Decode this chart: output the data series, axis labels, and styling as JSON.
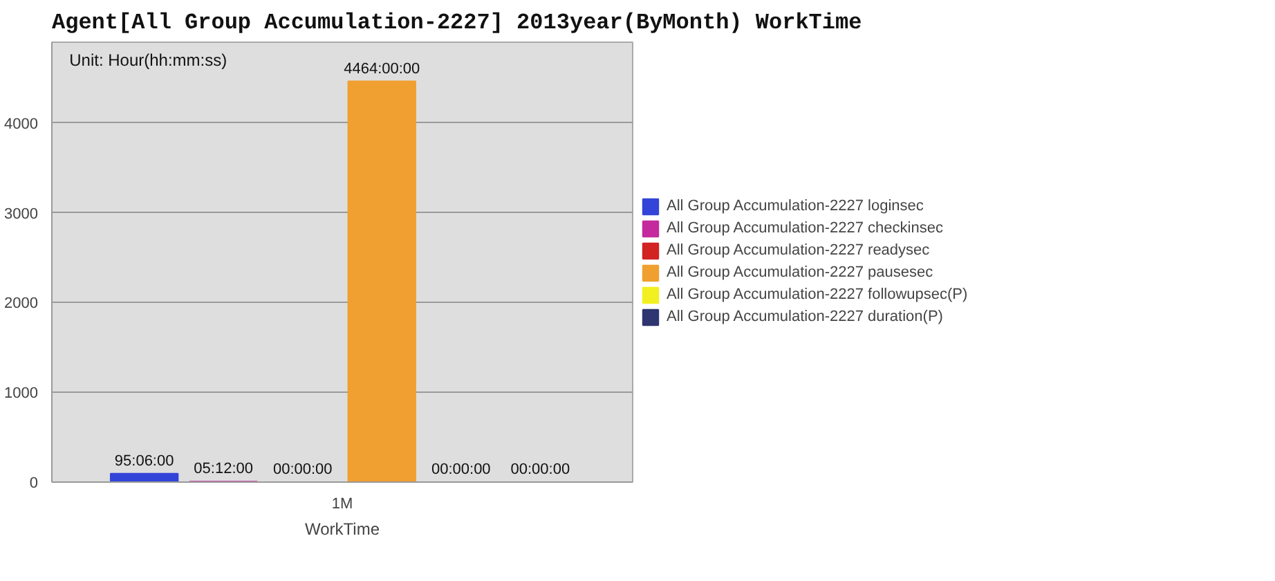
{
  "chart_data": {
    "type": "bar",
    "title": "Agent[All Group Accumulation-2227]   2013year(ByMonth) WorkTime",
    "xlabel": "WorkTime",
    "annotations": [
      "Unit: Hour(hh:mm:ss)"
    ],
    "categories": [
      "1M"
    ],
    "series": [
      {
        "name": "All Group Accumulation-2227 loginsec",
        "color": "#3344d8",
        "values": [
          95.1
        ],
        "value_labels": [
          "95:06:00"
        ]
      },
      {
        "name": "All Group Accumulation-2227 checkinsec",
        "color": "#c42a9e",
        "values": [
          5.2
        ],
        "value_labels": [
          "05:12:00"
        ]
      },
      {
        "name": "All Group Accumulation-2227 readysec",
        "color": "#d22222",
        "values": [
          0
        ],
        "value_labels": [
          "00:00:00"
        ]
      },
      {
        "name": "All Group Accumulation-2227 pausesec",
        "color": "#f0a030",
        "values": [
          4464
        ],
        "value_labels": [
          "4464:00:00"
        ]
      },
      {
        "name": "All Group Accumulation-2227 followupsec(P)",
        "color": "#f2f020",
        "values": [
          0
        ],
        "value_labels": [
          "00:00:00"
        ]
      },
      {
        "name": "All Group Accumulation-2227 duration(P)",
        "color": "#2e3570",
        "values": [
          0
        ],
        "value_labels": [
          "00:00:00"
        ]
      }
    ],
    "ylim": [
      0,
      4900
    ],
    "yticks": [
      0,
      1000,
      2000,
      3000,
      4000
    ],
    "grid": "y",
    "legend": "right"
  }
}
